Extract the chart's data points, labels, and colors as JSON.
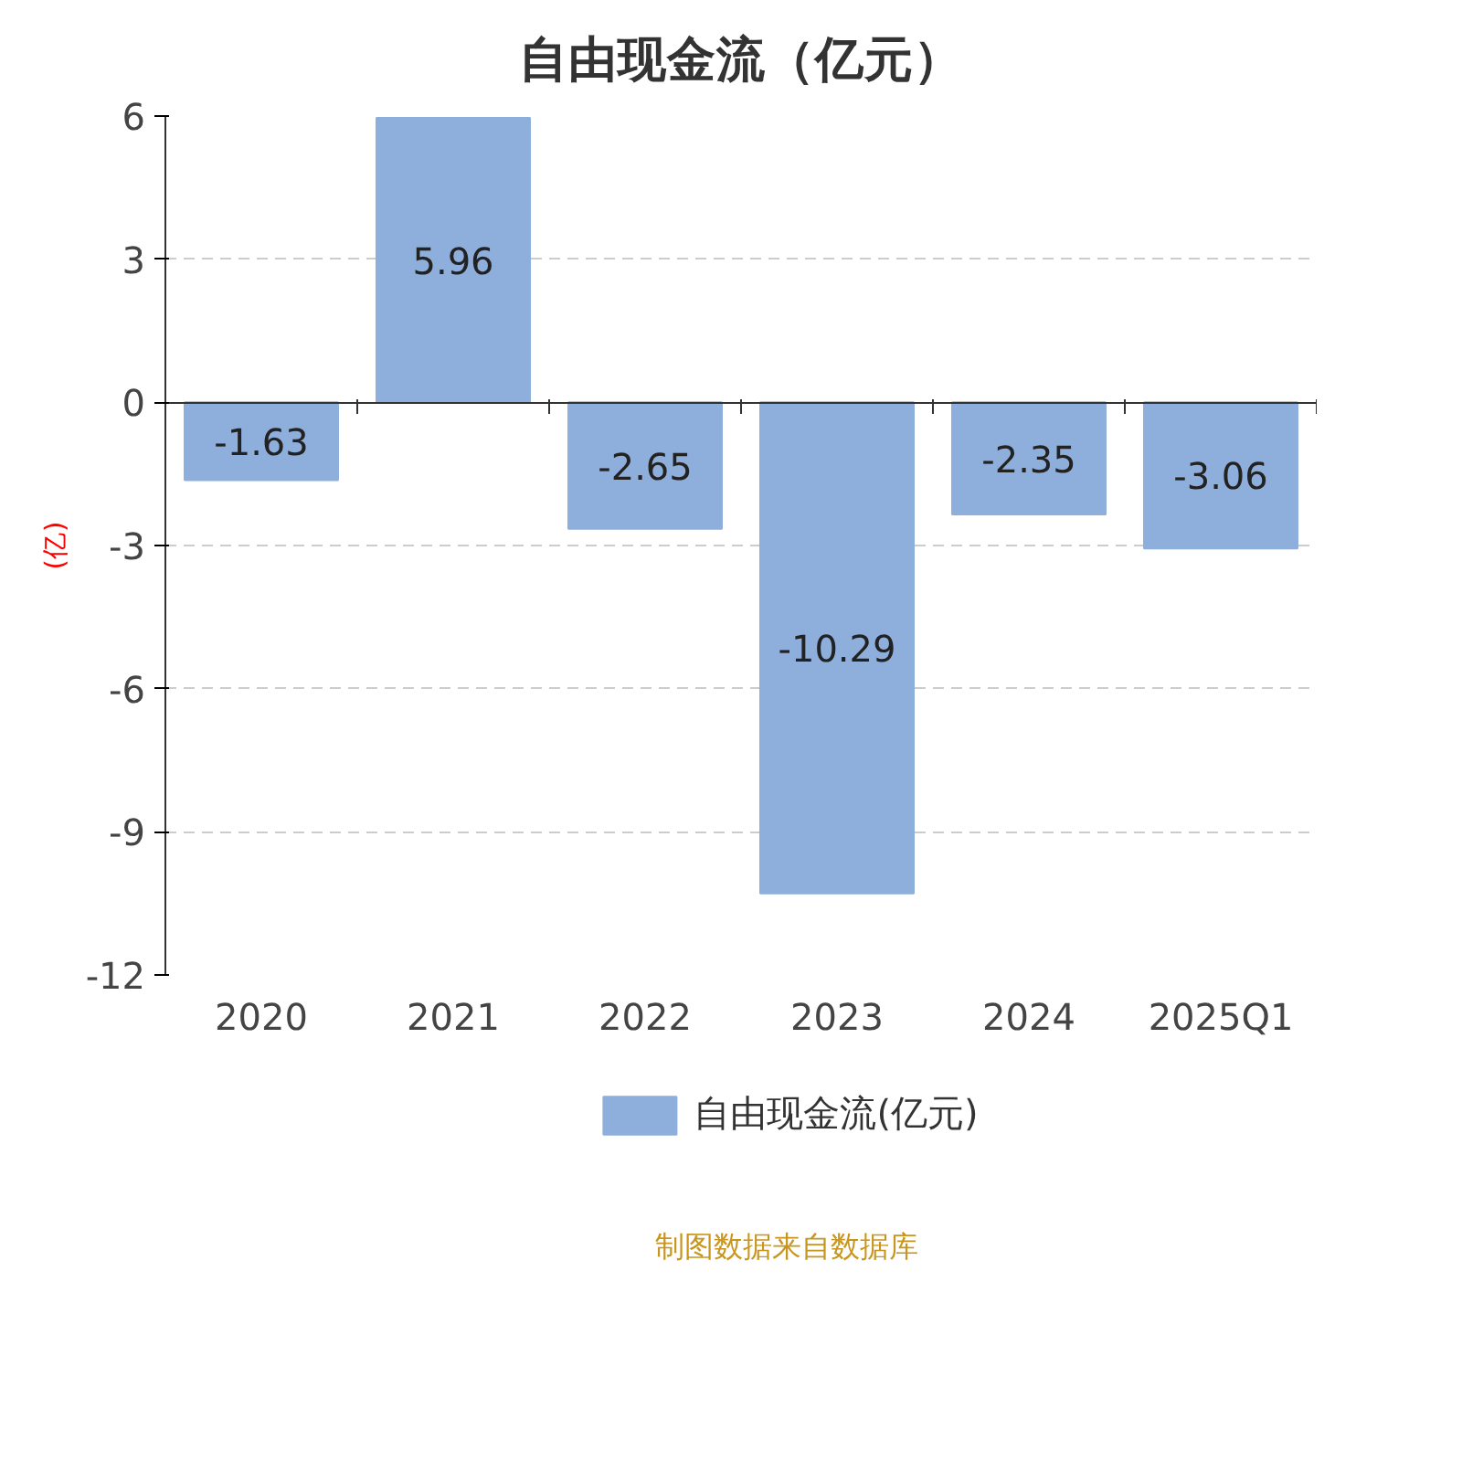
{
  "chart_data": {
    "type": "bar",
    "title": "自由现金流（亿元）",
    "ylabel": "(亿)",
    "categories": [
      "2020",
      "2021",
      "2022",
      "2023",
      "2024",
      "2025Q1"
    ],
    "series": [
      {
        "name": "自由现金流(亿元)",
        "color": "#8eaedb",
        "values": [
          -1.63,
          5.96,
          -2.65,
          -10.29,
          -2.35,
          -3.06
        ]
      }
    ],
    "ylim": [
      -12,
      6
    ],
    "yticks": [
      -12,
      -9,
      -6,
      -3,
      0,
      3,
      6
    ],
    "grid": "y",
    "legend": "bottom",
    "data_labels": true,
    "annotations": [
      "制图数据来自数据库"
    ]
  }
}
